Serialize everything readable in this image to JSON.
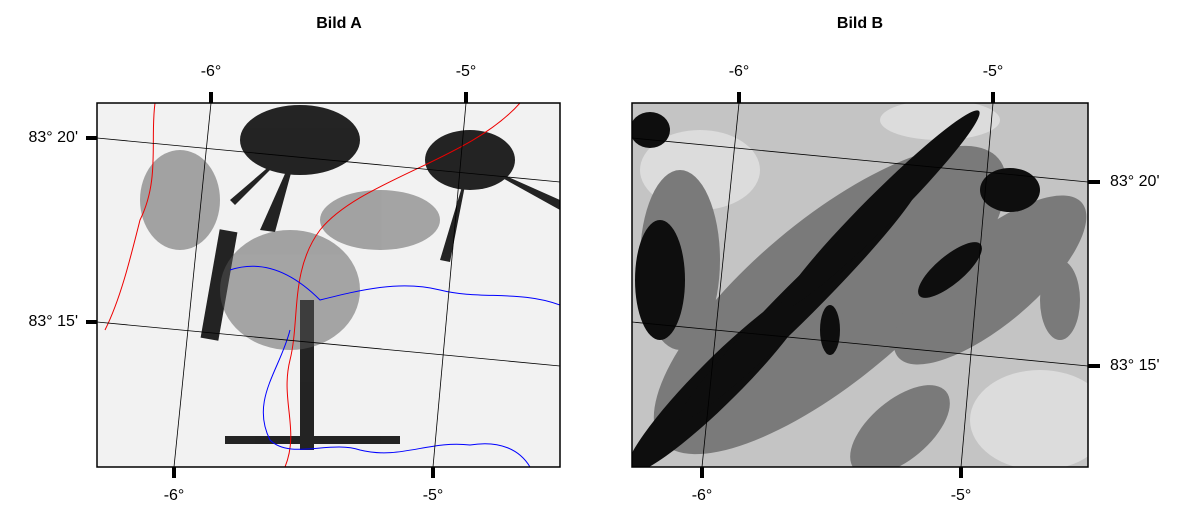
{
  "panels": [
    {
      "title": "Bild A",
      "top_ticks": [
        "-6°",
        "-5°"
      ],
      "bottom_ticks": [
        "-6°",
        "-5°"
      ],
      "side_ticks": [
        "83° 20'",
        "83° 15'"
      ]
    },
    {
      "title": "Bild B",
      "top_ticks": [
        "-6°",
        "-5°"
      ],
      "bottom_ticks": [
        "-6°",
        "-5°"
      ],
      "side_ticks": [
        "83° 20'",
        "83° 15'"
      ]
    }
  ]
}
